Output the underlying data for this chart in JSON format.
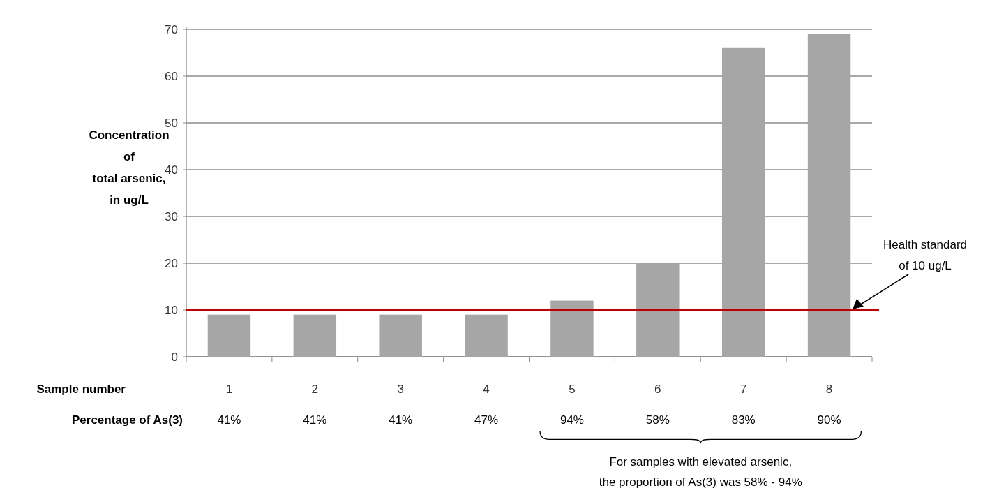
{
  "chart_data": {
    "type": "bar",
    "xlabel": "Sample number",
    "ylabel": "Concentration\nof\ntotal arsenic,\nin ug/L",
    "categories": [
      "1",
      "2",
      "3",
      "4",
      "5",
      "6",
      "7",
      "8"
    ],
    "values": [
      9,
      9,
      9,
      9,
      12,
      20,
      66,
      69
    ],
    "color": "#a6a6a6",
    "ylim": [
      0,
      70
    ],
    "yticks": [
      0,
      10,
      20,
      30,
      40,
      50,
      60,
      70
    ],
    "grid": "y",
    "ref_lines": [
      {
        "axis": "y",
        "value": 10,
        "label": "Health standard\nof 10 ug/L",
        "color": "#c00000"
      }
    ],
    "annotations": [
      "Percentage of As(3)",
      "41%",
      "41%",
      "41%",
      "47%",
      "94%",
      "58%",
      "83%",
      "90%",
      "For samples with elevated arsenic,\nthe proportion of As(3) was 58% - 94%"
    ]
  }
}
